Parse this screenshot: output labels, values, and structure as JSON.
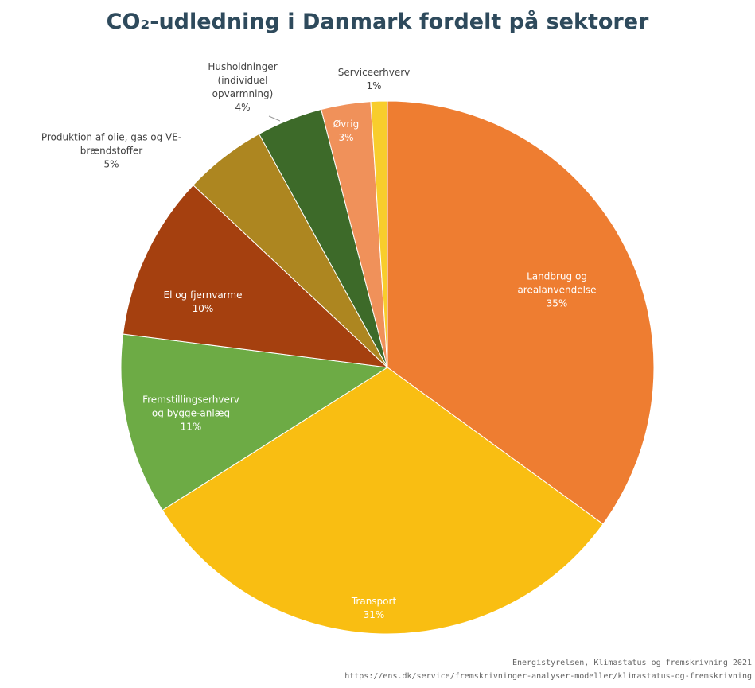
{
  "chart_data": {
    "type": "pie",
    "title": "CO₂-udledning i Danmark fordelt på sektorer",
    "categories": [
      "Landbrug og\narealanvendelse",
      "Transport",
      "Fremstillingserhverv\nog bygge-anlæg",
      "El og fjernvarme",
      "Produktion af olie, gas og VE-\nbrændstoffer",
      "Husholdninger\n(individuel\nopvarmning)",
      "Øvrig",
      "Serviceerhverv"
    ],
    "values": [
      35,
      31,
      11,
      10,
      5,
      4,
      3,
      1
    ],
    "value_labels": [
      "35%",
      "31%",
      "11%",
      "10%",
      "5%",
      "4%",
      "3%",
      "1%"
    ],
    "colors": [
      "#ee7d31",
      "#f9be12",
      "#6dab45",
      "#a5400f",
      "#ad8620",
      "#3d6a29",
      "#f0915a",
      "#f8cd2c"
    ],
    "source": [
      "Energistyrelsen, Klimastatus og fremskrivning 2021",
      "https://ens.dk/service/fremskrivninger-analyser-modeller/klimastatus-og-fremskrivning"
    ]
  }
}
